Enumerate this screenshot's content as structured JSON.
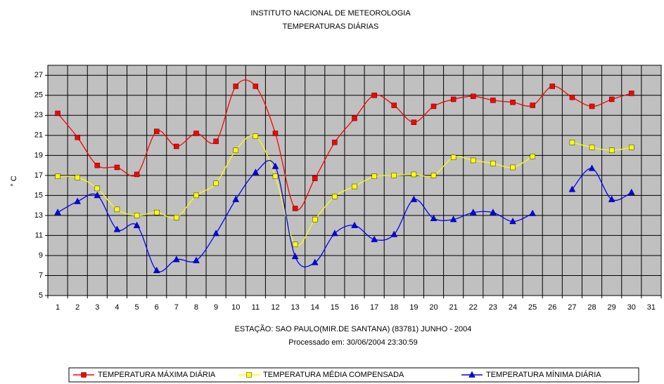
{
  "chart_data": {
    "type": "line",
    "title": "INSTITUTO NACIONAL DE METEOROLOGIA",
    "subtitle": "TEMPERATURAS DIÁRIAS",
    "x_label": "ESTAÇÃO: SAO PAULO(MIR.DE SANTANA) (83781) JUNHO - 2004",
    "note": "Processado em: 30/06/2004 23:30:59",
    "y_label": "° C",
    "categories": [
      "1",
      "2",
      "3",
      "4",
      "5",
      "6",
      "7",
      "8",
      "9",
      "10",
      "11",
      "12",
      "13",
      "14",
      "15",
      "16",
      "17",
      "18",
      "19",
      "20",
      "21",
      "22",
      "23",
      "24",
      "25",
      "26",
      "27",
      "28",
      "29",
      "30",
      "31"
    ],
    "series": [
      {
        "name": "TEMPERATURA MÁXIMA DIÁRIA",
        "color": "#ff0000",
        "marker": "square",
        "values": [
          23.2,
          20.8,
          18.0,
          17.8,
          17.1,
          21.4,
          19.9,
          21.2,
          20.4,
          25.9,
          25.9,
          21.2,
          13.7,
          16.7,
          20.3,
          22.7,
          25.0,
          24.0,
          22.3,
          23.9,
          24.6,
          24.9,
          24.5,
          24.3,
          24.0,
          25.9,
          24.8,
          23.9,
          24.6,
          25.2,
          null
        ]
      },
      {
        "name": "TEMPERATURA MÉDIA COMPENSADA",
        "color": "#ffff00",
        "marker": "square",
        "values": [
          16.9,
          16.8,
          15.7,
          13.6,
          13.0,
          13.3,
          12.8,
          15.0,
          16.2,
          19.5,
          20.9,
          16.9,
          10.1,
          12.6,
          14.9,
          15.9,
          16.9,
          17.0,
          17.1,
          17.0,
          18.8,
          18.5,
          18.2,
          17.8,
          18.9,
          null,
          20.3,
          19.8,
          19.5,
          19.8,
          null
        ]
      },
      {
        "name": "TEMPERATURA MÍNIMA DIÁRIA",
        "color": "#0000ff",
        "marker": "triangle",
        "values": [
          13.3,
          14.4,
          15.0,
          11.6,
          12.0,
          7.5,
          8.6,
          8.5,
          11.2,
          14.6,
          17.3,
          17.9,
          8.9,
          8.3,
          11.2,
          12.0,
          10.6,
          11.1,
          14.6,
          12.7,
          12.6,
          13.3,
          13.3,
          12.4,
          13.2,
          null,
          15.6,
          17.7,
          14.6,
          15.3,
          null
        ]
      }
    ],
    "ylim": [
      5,
      28
    ],
    "yticks": [
      5,
      7,
      9,
      11,
      13,
      15,
      17,
      19,
      21,
      23,
      25,
      27
    ],
    "grid": true,
    "legend": "bottom",
    "plot_background": "#c0c0c0"
  }
}
